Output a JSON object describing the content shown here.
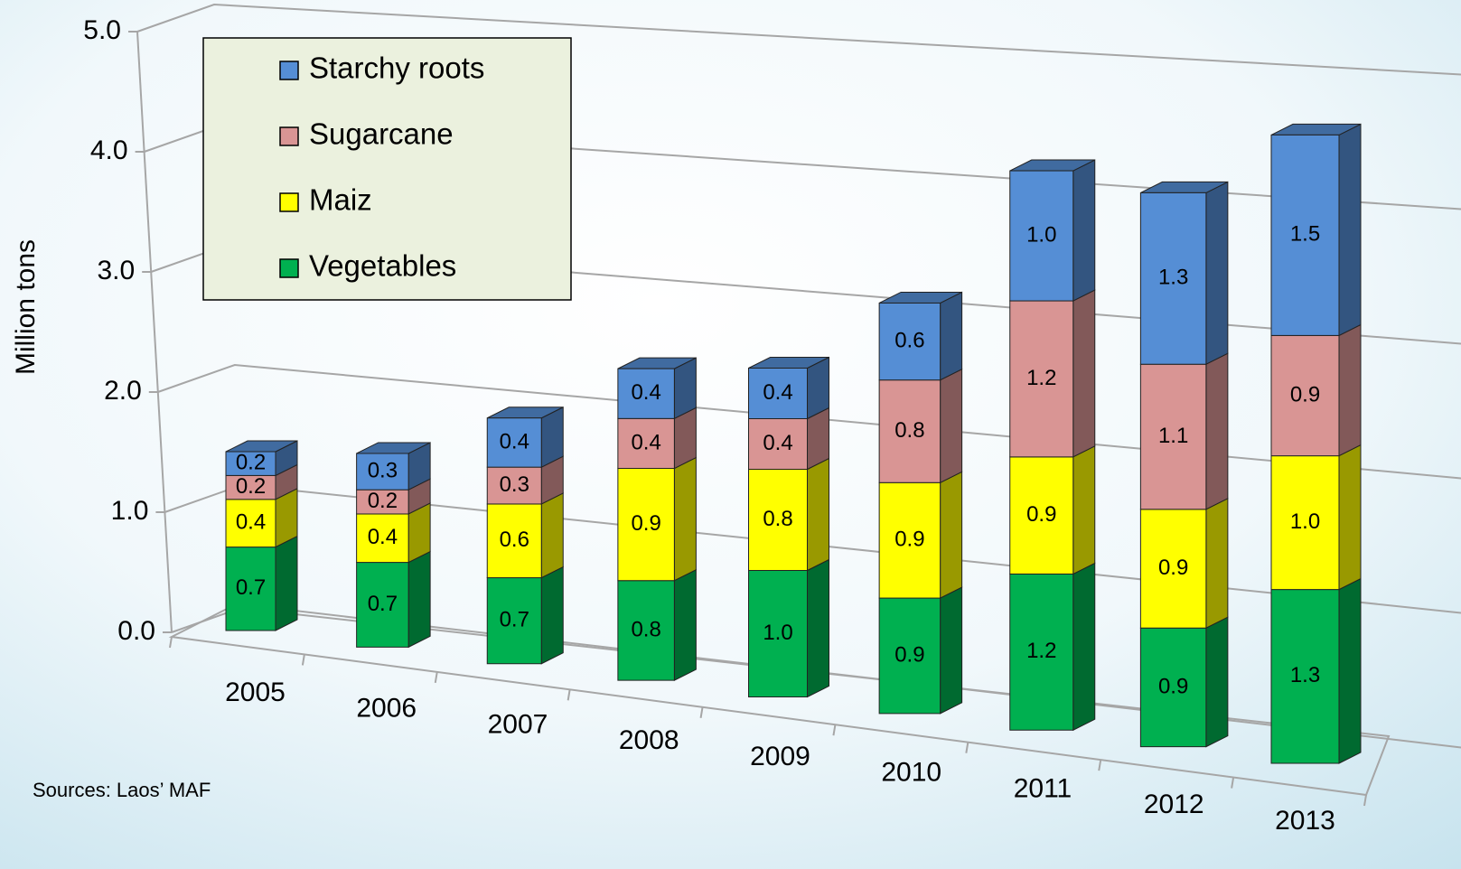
{
  "chart_data": {
    "type": "bar3d_stacked",
    "y_label": "Million tons",
    "note": "Sources: Laos’ MAF",
    "categories": [
      "2005",
      "2006",
      "2007",
      "2008",
      "2009",
      "2010",
      "2011",
      "2012",
      "2013"
    ],
    "series": [
      {
        "name": "Vegetables",
        "color": "#00b050",
        "values": [
          0.7,
          0.7,
          0.7,
          0.8,
          1.0,
          0.9,
          1.2,
          0.9,
          1.3
        ],
        "value_labels": [
          "0.7",
          "0.7",
          "0.7",
          "0.8",
          "1.0",
          "0.9",
          "1.2",
          "0.9",
          "1.3"
        ]
      },
      {
        "name": "Maiz",
        "color": "#ffff00",
        "values": [
          0.4,
          0.4,
          0.6,
          0.9,
          0.8,
          0.9,
          0.9,
          0.9,
          1.0
        ],
        "value_labels": [
          "0.4",
          "0.4",
          "0.6",
          "0.9",
          "0.8",
          "0.9",
          "0.9",
          "0.9",
          "1.0"
        ]
      },
      {
        "name": "Sugarcane",
        "color": "#d99594",
        "values": [
          0.2,
          0.2,
          0.3,
          0.4,
          0.4,
          0.8,
          1.2,
          1.1,
          0.9
        ],
        "value_labels": [
          "0.2",
          "0.2",
          "0.3",
          "0.4",
          "0.4",
          "0.8",
          "1.2",
          "1.1",
          "0.9"
        ]
      },
      {
        "name": "Starchy roots",
        "color": "#558ed5",
        "values": [
          0.2,
          0.3,
          0.4,
          0.4,
          0.4,
          0.6,
          1.0,
          1.3,
          1.5
        ],
        "value_labels": [
          "0.2",
          "0.3",
          "0.4",
          "0.4",
          "0.4",
          "0.6",
          "1.0",
          "1.3",
          "1.5"
        ]
      }
    ],
    "ylim": [
      0,
      5
    ],
    "yticks": [
      {
        "value": 0,
        "label": "0.0"
      },
      {
        "value": 1,
        "label": "1.0"
      },
      {
        "value": 2,
        "label": "2.0"
      },
      {
        "value": 3,
        "label": "3.0"
      },
      {
        "value": 4,
        "label": "4.0"
      },
      {
        "value": 5,
        "label": "5.0"
      }
    ],
    "grid": true,
    "legend": "upper left",
    "legend_order": "reversed"
  }
}
